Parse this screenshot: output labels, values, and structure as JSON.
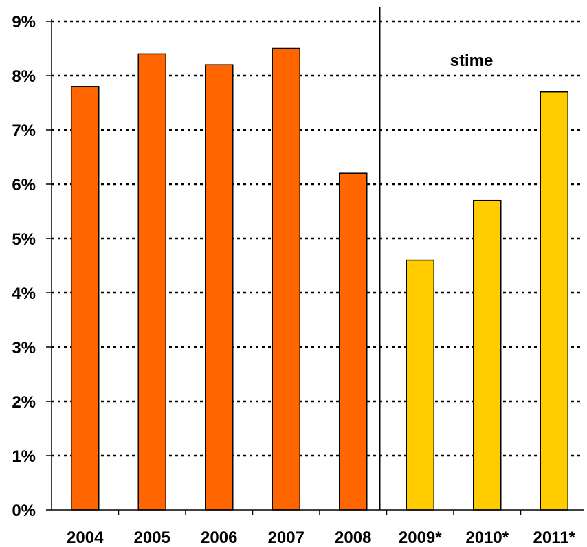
{
  "chart_data": {
    "type": "bar",
    "categories": [
      "2004",
      "2005",
      "2006",
      "2007",
      "2008",
      "2009*",
      "2010*",
      "2011*"
    ],
    "values": [
      7.8,
      8.4,
      8.2,
      8.5,
      6.2,
      4.6,
      5.7,
      7.7
    ],
    "bar_colors": [
      "#FF6600",
      "#FF6600",
      "#FF6600",
      "#FF6600",
      "#FF6600",
      "#FFCC00",
      "#FFCC00",
      "#FFCC00"
    ],
    "ylim": [
      0,
      9
    ],
    "yticks": [
      0,
      1,
      2,
      3,
      4,
      5,
      6,
      7,
      8,
      9
    ],
    "ytick_labels": [
      "0%",
      "1%",
      "2%",
      "3%",
      "4%",
      "5%",
      "6%",
      "7%",
      "8%",
      "9%"
    ],
    "grid": "horizontal dotted",
    "divider_between": [
      "2008",
      "2009*"
    ],
    "annotation": "stime",
    "title": "",
    "xlabel": "",
    "ylabel": ""
  }
}
